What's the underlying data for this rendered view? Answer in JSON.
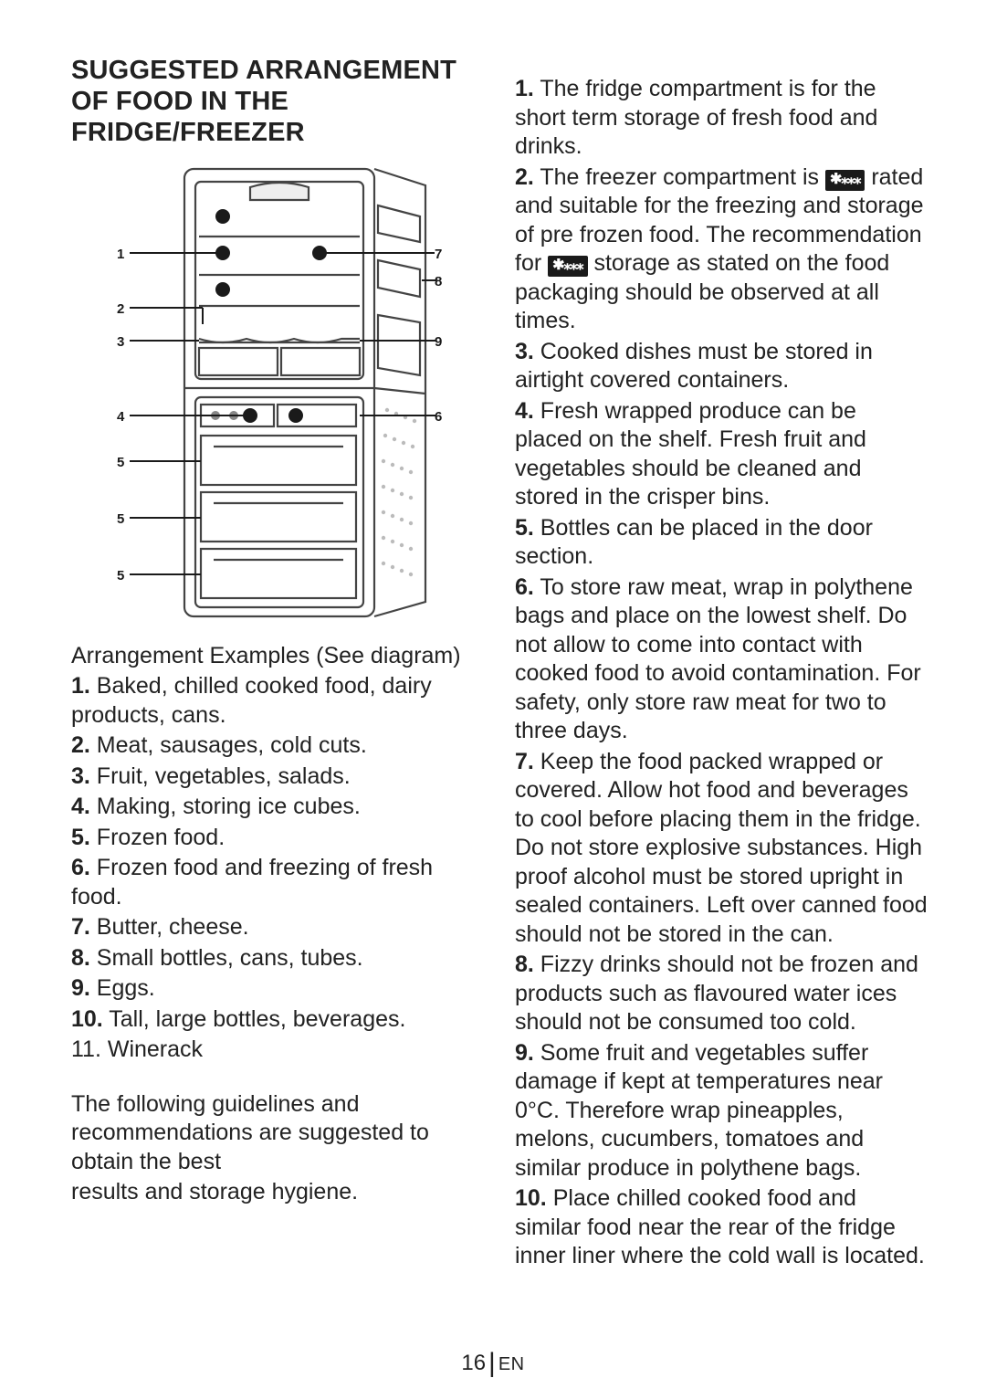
{
  "heading": "SUGGESTED ARRANGEMENT OF FOOD IN THE FRIDGE/FREEZER",
  "diagram": {
    "outer_color": "#444444",
    "bg_color": "#ffffff",
    "line_color": "#1a1a1a",
    "labels_left": [
      "1",
      "2",
      "3",
      "4",
      "5",
      "5",
      "5"
    ],
    "labels_right": [
      "7",
      "8",
      "9",
      "6"
    ]
  },
  "examples_title": "Arrangement Examples (See diagram)",
  "examples": [
    {
      "num": "1.",
      "text": " Baked, chilled cooked food, dairy products, cans."
    },
    {
      "num": "2.",
      "text": " Meat, sausages, cold cuts."
    },
    {
      "num": "3.",
      "text": " Fruit, vegetables, salads."
    },
    {
      "num": "4.",
      "text": " Making, storing ice cubes."
    },
    {
      "num": "5.",
      "text": " Frozen food."
    },
    {
      "num": "6.",
      "text": " Frozen food and freezing of fresh food."
    },
    {
      "num": "7.",
      "text": " Butter, cheese."
    },
    {
      "num": "8.",
      "text": " Small bottles, cans, tubes."
    },
    {
      "num": "9.",
      "text": " Eggs."
    },
    {
      "num": "10.",
      "text": " Tall, large bottles, beverages."
    },
    {
      "num": "",
      "text": "11. Winerack"
    }
  ],
  "intro1": "The following guidelines and recommendations are suggested to obtain the best",
  "intro2": "results and storage hygiene.",
  "rightIconGlyph": "✱⁎⁎⁎",
  "right": [
    {
      "num": "1.",
      "pre": " The fridge compartment is for the short term storage of fresh food and drinks."
    },
    {
      "num": "2.",
      "pre": " The freezer compartment is ",
      "icon": true,
      "post": " rated and suitable for the freezing and storage of pre frozen food. The recommendation  for ",
      "icon2": true,
      "post2": " storage as stated on the food packaging should be observed at all times."
    },
    {
      "num": "3.",
      "pre": " Cooked dishes must be stored in airtight covered containers."
    },
    {
      "num": "4.",
      "pre": " Fresh wrapped produce can be placed on the shelf. Fresh fruit and vegetables should be cleaned and stored in the crisper bins."
    },
    {
      "num": "5.",
      "pre": " Bottles can be placed in the door section."
    },
    {
      "num": "6.",
      "pre": " To store raw meat, wrap in polythene bags and place on the lowest shelf. Do not allow to come into contact with cooked food to avoid contamination. For safety, only store raw meat for two to three days."
    },
    {
      "num": "7.",
      "pre": " Keep the food packed wrapped or covered. Allow hot food and beverages to cool before placing them in the fridge. Do not store explosive substances. High proof alcohol must be stored upright in sealed containers. Left over canned food should not be stored in the can."
    },
    {
      "num": "8.",
      "pre": " Fizzy drinks should not be frozen and products such as flavoured water ices should not be consumed too cold."
    },
    {
      "num": "9.",
      "pre": " Some fruit and vegetables suffer damage if kept at temperatures near 0°C. Therefore wrap pineapples, melons, cucumbers, tomatoes and similar produce in polythene bags."
    },
    {
      "num": "10.",
      "pre": " Place chilled cooked food and similar food near the rear of the fridge inner liner where the cold wall is located."
    }
  ],
  "footer": {
    "page": "16",
    "lang": "EN"
  }
}
